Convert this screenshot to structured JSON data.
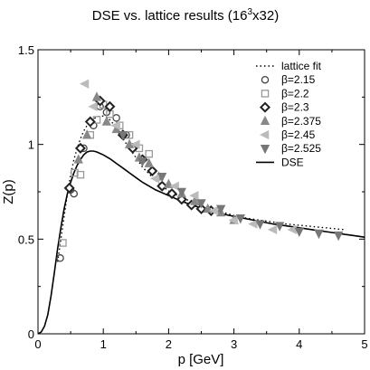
{
  "chart_data": {
    "type": "scatter",
    "title": "DSE vs. lattice results (16",
    "title_sup": "3",
    "title_tail": "x32)",
    "xlabel": "p [GeV]",
    "ylabel": "Z(p)",
    "xlim": [
      0,
      5
    ],
    "ylim": [
      0,
      1.5
    ],
    "xticks": [
      0,
      1,
      2,
      3,
      4,
      5
    ],
    "yticks": [
      0,
      0.5,
      1,
      1.5
    ],
    "xtick_labels": [
      "0",
      "1",
      "2",
      "3",
      "4",
      "5"
    ],
    "ytick_labels": [
      "0",
      "0.5",
      "1",
      "1.5"
    ],
    "legend_position": "top-right",
    "grid": false,
    "lines": [
      {
        "name": "lattice fit",
        "style": "dotted",
        "color": "#000000",
        "x": [
          0.3,
          0.35,
          0.4,
          0.45,
          0.5,
          0.55,
          0.6,
          0.65,
          0.7,
          0.75,
          0.8,
          0.85,
          0.9,
          0.95,
          1.0,
          1.05,
          1.1,
          1.15,
          1.2,
          1.3,
          1.4,
          1.5,
          1.6,
          1.7,
          1.8,
          1.9,
          2.0,
          2.2,
          2.4,
          2.6,
          2.8,
          3.0,
          3.2,
          3.5,
          3.8,
          4.1,
          4.4,
          4.7
        ],
        "y": [
          0.38,
          0.5,
          0.62,
          0.74,
          0.84,
          0.92,
          0.98,
          1.03,
          1.07,
          1.1,
          1.12,
          1.135,
          1.145,
          1.15,
          1.15,
          1.145,
          1.13,
          1.11,
          1.08,
          1.03,
          0.98,
          0.93,
          0.88,
          0.845,
          0.81,
          0.78,
          0.755,
          0.72,
          0.69,
          0.665,
          0.645,
          0.625,
          0.61,
          0.595,
          0.58,
          0.57,
          0.56,
          0.55
        ]
      },
      {
        "name": "DSE",
        "style": "solid",
        "color": "#000000",
        "x": [
          0.0,
          0.05,
          0.1,
          0.15,
          0.2,
          0.25,
          0.3,
          0.35,
          0.4,
          0.45,
          0.5,
          0.55,
          0.6,
          0.65,
          0.7,
          0.75,
          0.8,
          0.85,
          0.9,
          1.0,
          1.1,
          1.2,
          1.3,
          1.4,
          1.5,
          1.6,
          1.8,
          2.0,
          2.2,
          2.4,
          2.6,
          2.8,
          3.0,
          3.3,
          3.6,
          3.9,
          4.2,
          4.5,
          4.8,
          5.0
        ],
        "y": [
          0.0,
          0.01,
          0.04,
          0.1,
          0.2,
          0.32,
          0.45,
          0.56,
          0.66,
          0.74,
          0.8,
          0.85,
          0.89,
          0.92,
          0.945,
          0.96,
          0.965,
          0.965,
          0.96,
          0.945,
          0.925,
          0.9,
          0.875,
          0.85,
          0.825,
          0.8,
          0.76,
          0.73,
          0.7,
          0.675,
          0.655,
          0.635,
          0.62,
          0.6,
          0.58,
          0.565,
          0.55,
          0.535,
          0.52,
          0.51
        ]
      }
    ],
    "series": [
      {
        "name": "β=2.15",
        "marker": "circle",
        "color": "#444444",
        "x": [
          0.34,
          0.5,
          0.55,
          0.7,
          0.85,
          0.95,
          1.05,
          1.2,
          1.35
        ],
        "y": [
          0.4,
          0.76,
          0.74,
          0.98,
          1.1,
          1.2,
          1.17,
          1.14,
          1.05
        ]
      },
      {
        "name": "β=2.2",
        "marker": "square",
        "color": "#999999",
        "x": [
          0.38,
          0.56,
          0.65,
          0.8,
          0.9,
          1.0,
          1.1,
          1.25,
          1.4,
          1.55,
          1.7
        ],
        "y": [
          0.48,
          0.85,
          0.84,
          1.05,
          1.13,
          1.21,
          1.16,
          1.1,
          1.05,
          0.98,
          0.95
        ]
      },
      {
        "name": "β=2.3",
        "marker": "diamond",
        "color": "#222222",
        "x": [
          0.48,
          0.65,
          0.8,
          0.95,
          1.1,
          1.3,
          1.45,
          1.6,
          1.75,
          1.9,
          2.05,
          2.2,
          2.35,
          2.5,
          2.65
        ],
        "y": [
          0.77,
          0.98,
          1.12,
          1.23,
          1.2,
          1.05,
          0.98,
          0.92,
          0.86,
          0.78,
          0.74,
          0.71,
          0.68,
          0.66,
          0.65
        ]
      },
      {
        "name": "β=2.375",
        "marker": "triangle-up",
        "color": "#888888",
        "x": [
          0.62,
          0.75,
          0.9,
          1.05,
          1.2,
          1.4,
          1.55,
          1.7,
          1.85,
          2.0,
          2.2,
          2.4,
          2.6,
          2.8,
          3.0
        ],
        "y": [
          0.92,
          1.05,
          1.25,
          1.12,
          1.08,
          1.0,
          0.93,
          0.9,
          0.83,
          0.79,
          0.74,
          0.7,
          0.66,
          0.64,
          0.6
        ]
      },
      {
        "name": "β=2.45",
        "marker": "triangle-left",
        "color": "#bbbbbb",
        "x": [
          0.72,
          0.85,
          1.2,
          1.5,
          1.8,
          2.1,
          2.4,
          2.7,
          3.0,
          3.3,
          3.6,
          3.9
        ],
        "y": [
          1.32,
          1.2,
          1.1,
          1.0,
          0.82,
          0.78,
          0.73,
          0.65,
          0.6,
          0.58,
          0.55,
          0.55
        ]
      },
      {
        "name": "β=2.525",
        "marker": "triangle-down",
        "color": "#777777",
        "x": [
          1.3,
          1.6,
          1.9,
          2.2,
          2.5,
          2.8,
          3.1,
          3.4,
          3.7,
          4.0,
          4.3,
          4.6
        ],
        "y": [
          1.05,
          0.91,
          0.83,
          0.75,
          0.69,
          0.66,
          0.61,
          0.58,
          0.57,
          0.54,
          0.53,
          0.52
        ]
      }
    ]
  }
}
